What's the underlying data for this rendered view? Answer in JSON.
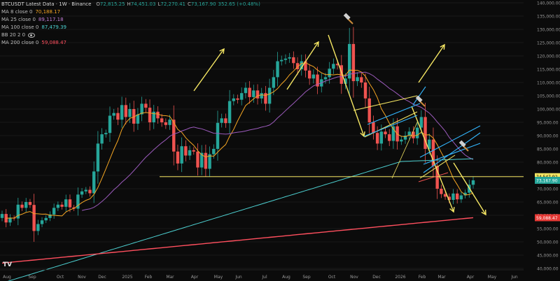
{
  "header": {
    "symbol_title": "BTCUSDT Latest Data · 1W · Binance",
    "ohlc": [
      {
        "k": "O",
        "v": "72,815.25"
      },
      {
        "k": "H",
        "v": "74,451.03"
      },
      {
        "k": "L",
        "v": "72,270.41"
      },
      {
        "k": "C",
        "v": "73,167.90"
      },
      {
        "k": "",
        "v": "352.65 (+0.48%)"
      }
    ]
  },
  "indicators": [
    {
      "label": "MA 8 close 0",
      "value": "70,188.17",
      "color": "#f5a623"
    },
    {
      "label": "MA 25 close 0",
      "value": "89,117.18",
      "color": "#c27ed8"
    },
    {
      "label": "MA 100 close 0",
      "value": "87,479.39",
      "color": "#4dd0d1"
    },
    {
      "label": "BB 20 2 0",
      "value": "",
      "color": "#9a9a9a"
    },
    {
      "label": "MA 200 close 0",
      "value": "59,088.47",
      "color": "#ff4f5e"
    }
  ],
  "chart_data": {
    "type": "candlestick",
    "y_ticks": [
      40000,
      45000,
      50000,
      55000,
      60000,
      65000,
      70000,
      75000,
      80000,
      85000,
      90000,
      95000,
      100000,
      105000,
      110000,
      115000,
      120000,
      125000,
      130000,
      135000,
      140000
    ],
    "y_tick_labels": [
      "40,000.00",
      "45,000.00",
      "50,000.00",
      "55,000.00",
      "60,000.00",
      "65,000.00",
      "70,000.00",
      "75,000.00",
      "80,000.00",
      "85,000.00",
      "90,000.00",
      "95,000.00",
      "100,000.00",
      "105,000.00",
      "110,000.00",
      "115,000.00",
      "120,000.00",
      "125,000.00",
      "130,000.00",
      "135,000.00",
      "140,000.00"
    ],
    "ylim": [
      40000,
      140000
    ],
    "x_labels": [
      "Aug",
      "Sep",
      "Oct",
      "Nov",
      "Dec",
      "2025",
      "Feb",
      "Mar",
      "Apr",
      "May",
      "Jun",
      "Jul",
      "Aug",
      "Sep",
      "Oct",
      "Nov",
      "Dec",
      "2026",
      "Feb",
      "Mar",
      "Apr",
      "May",
      "Jun"
    ],
    "price_labels": [
      {
        "value": 74547.92,
        "text": "74,547.92",
        "color": "#f5e663",
        "text_color": "#000000"
      },
      {
        "value": 73167.9,
        "text": "73,167.90",
        "color": "#26a69a",
        "text_color": "#ffffff"
      },
      {
        "value": 59088.47,
        "text": "59,088.47",
        "color": "#e53935",
        "text_color": "#ffffff"
      }
    ],
    "closes": [
      60500,
      57300,
      59100,
      58800,
      64000,
      62800,
      65000,
      63900,
      54100,
      56700,
      58100,
      59000,
      60300,
      62800,
      64000,
      63200,
      66000,
      63000,
      62500,
      67800,
      69000,
      69600,
      68300,
      76500,
      87000,
      90500,
      91000,
      97500,
      98500,
      96000,
      101500,
      97000,
      100000,
      94500,
      98000,
      102000,
      100500,
      95000,
      99000,
      96500,
      95000,
      94000,
      96000,
      84000,
      79500,
      86000,
      82500,
      84500,
      84000,
      78000,
      83500,
      77500,
      83000,
      85000,
      94800,
      96500,
      94700,
      103000,
      104000,
      103500,
      106000,
      108000,
      104500,
      107000,
      104000,
      106000,
      102000,
      108000,
      112000,
      118000,
      118500,
      119000,
      119500,
      117300,
      115000,
      118000,
      114500,
      111500,
      113000,
      108500,
      111200,
      112000,
      115200,
      117000,
      116500,
      109500,
      111500,
      124500,
      110500,
      112000,
      110000,
      104000,
      95000,
      91000,
      87000,
      91500,
      90500,
      88000,
      93500,
      87800,
      88500,
      90000,
      91500,
      89000,
      93000,
      97000,
      85000,
      88500,
      78600,
      70000,
      68000,
      67000,
      65800,
      68200,
      66000,
      67500,
      68500,
      71500,
      73168
    ],
    "moving_averages": [
      "MA 8",
      "MA 25",
      "MA 100",
      "MA 200"
    ]
  }
}
